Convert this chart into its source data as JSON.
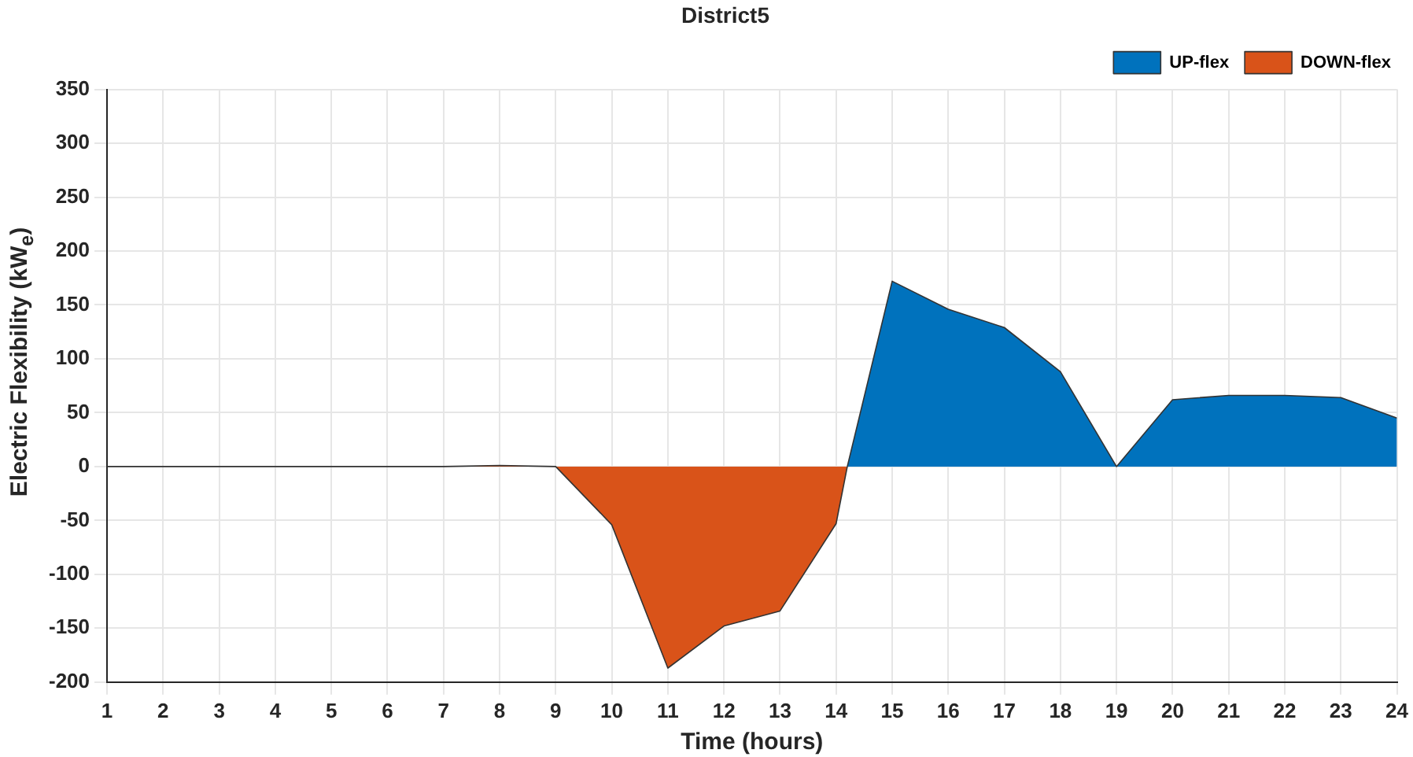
{
  "chart_data": {
    "type": "area",
    "title": "District5",
    "xlabel": "Time (hours)",
    "ylabel": "Electric Flexibility (kW$_{e}$)",
    "series": [
      {
        "name": "UP-flex",
        "color": "#0072bd",
        "x": [
          14.2,
          15,
          16,
          17,
          18,
          19,
          20,
          21,
          22,
          23,
          24
        ],
        "values": [
          0,
          172,
          146,
          129,
          88,
          0,
          62,
          66,
          66,
          64,
          45
        ]
      },
      {
        "name": "DOWN-flex",
        "color": "#d95319",
        "x": [
          1,
          2,
          3,
          4,
          5,
          6,
          7,
          8,
          9,
          10,
          11,
          12,
          13,
          14,
          14.2
        ],
        "values": [
          0,
          0,
          0,
          0,
          0,
          0,
          0,
          1,
          0,
          -54,
          -187,
          -148,
          -134,
          -53,
          0
        ]
      }
    ],
    "xlim": [
      1,
      24
    ],
    "xticks": [
      1,
      2,
      3,
      4,
      5,
      6,
      7,
      8,
      9,
      10,
      11,
      12,
      13,
      14,
      15,
      16,
      17,
      18,
      19,
      20,
      21,
      22,
      23,
      24
    ],
    "ylim": [
      -200,
      350
    ],
    "yticks": [
      -200,
      -150,
      -100,
      -50,
      0,
      50,
      100,
      150,
      200,
      250,
      300,
      350
    ],
    "grid": true,
    "legend": "top right"
  }
}
